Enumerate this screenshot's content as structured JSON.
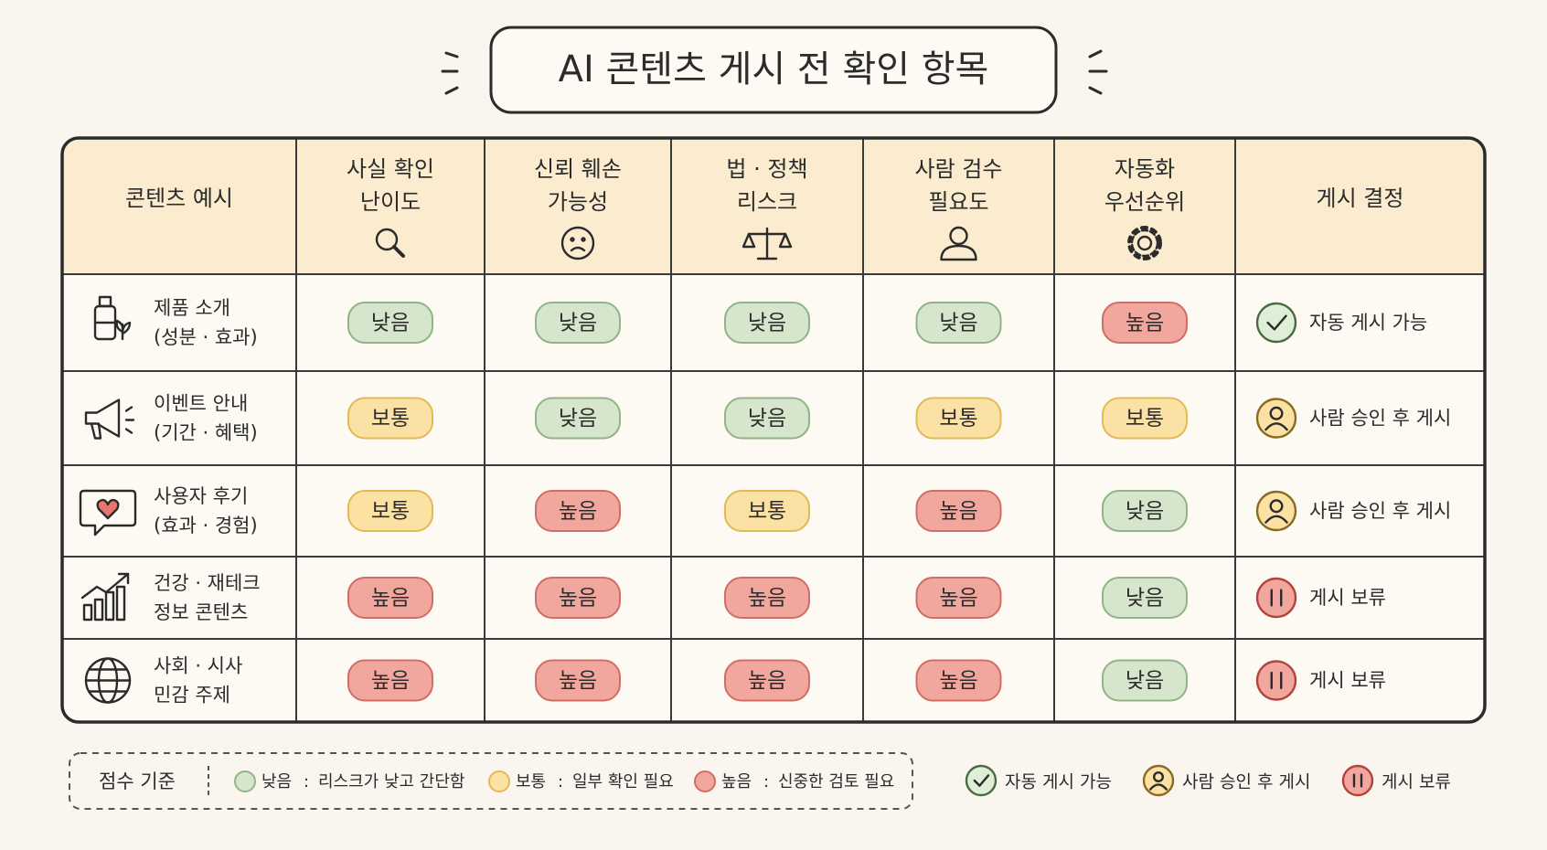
{
  "header": {
    "title": "AI 콘텐츠 게시 전 확인 항목"
  },
  "table": {
    "headers": [
      [
        "콘텐츠 예시"
      ],
      [
        "사실 확인",
        "난이도"
      ],
      [
        "신뢰 훼손",
        "가능성"
      ],
      [
        "법 · 정책",
        "리스크"
      ],
      [
        "사람 검수",
        "필요도"
      ],
      [
        "자동화",
        "우선순위"
      ],
      [
        "게시 결정"
      ]
    ],
    "rows": [
      {
        "example": [
          "제품 소개",
          "(성분 · 효과)"
        ],
        "ratings": [
          "낮음",
          "낮음",
          "낮음",
          "낮음",
          "높음"
        ],
        "decision": "자동 게시 가능"
      },
      {
        "example": [
          "이벤트 안내",
          "(기간 · 혜택)"
        ],
        "ratings": [
          "보통",
          "낮음",
          "낮음",
          "보통",
          "보통"
        ],
        "decision": "사람 승인 후 게시"
      },
      {
        "example": [
          "사용자 후기",
          "(효과 · 경험)"
        ],
        "ratings": [
          "보통",
          "높음",
          "보통",
          "높음",
          "낮음"
        ],
        "decision": "사람 승인 후 게시"
      },
      {
        "example": [
          "건강 · 재테크",
          "정보 콘텐츠"
        ],
        "ratings": [
          "높음",
          "높음",
          "높음",
          "높음",
          "낮음"
        ],
        "decision": "게시 보류"
      },
      {
        "example": [
          "사회 · 시사",
          "민감 주제"
        ],
        "ratings": [
          "높음",
          "높음",
          "높음",
          "높음",
          "낮음"
        ],
        "decision": "게시 보류"
      }
    ]
  },
  "legend": {
    "label": "점수 기준",
    "scale": [
      {
        "name": "낮음",
        "description": "리스크가 낮고 간단함"
      },
      {
        "name": "보통",
        "description": "일부 확인 필요"
      },
      {
        "name": "높음",
        "description": "신중한 검토 필요"
      }
    ],
    "decisions": [
      "자동 게시 가능",
      "사람 승인 후 게시",
      "게시 보류"
    ]
  }
}
